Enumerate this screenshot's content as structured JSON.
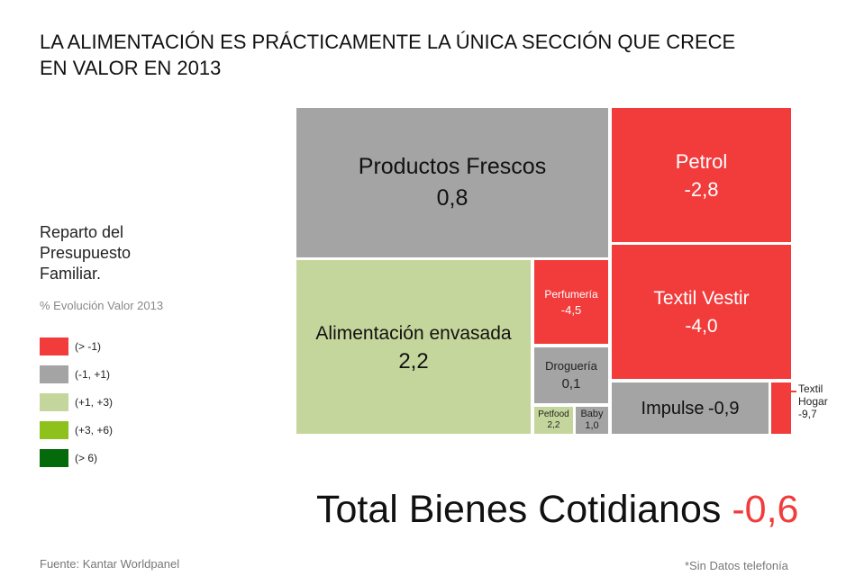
{
  "title": "LA ALIMENTACIÓN ES PRÁCTICAMENTE LA ÚNICA SECCIÓN QUE CRECE EN VALOR EN 2013",
  "legend": {
    "title": "Reparto del Presupuesto Familiar.",
    "subtitle": "% Evolución Valor 2013",
    "items": [
      {
        "label": "(> -1)",
        "color": "#f23b3b"
      },
      {
        "label": "(-1, +1)",
        "color": "#a4a4a4"
      },
      {
        "label": "(+1, +3)",
        "color": "#c5d69c"
      },
      {
        "label": "(+3, +6)",
        "color": "#8ec11b"
      },
      {
        "label": "(> 6)",
        "color": "#046a0a"
      }
    ]
  },
  "chart_data": {
    "type": "treemap",
    "items": [
      {
        "name": "Productos Frescos",
        "value": "0,8",
        "color": "#a4a4a4"
      },
      {
        "name": "Alimentación envasada",
        "value": "2,2",
        "color": "#c5d69c"
      },
      {
        "name": "Petrol",
        "value": "-2,8",
        "color": "#f23b3b"
      },
      {
        "name": "Textil Vestir",
        "value": "-4,0",
        "color": "#f23b3b"
      },
      {
        "name": "Perfumería",
        "value": "-4,5",
        "color": "#f23b3b"
      },
      {
        "name": "Droguería",
        "value": "0,1",
        "color": "#a4a4a4"
      },
      {
        "name": "Petfood",
        "value": "2,2",
        "color": "#c5d69c"
      },
      {
        "name": "Baby",
        "value": "1,0",
        "color": "#a4a4a4"
      },
      {
        "name": "Impulse",
        "value": "-0,9",
        "color": "#a4a4a4"
      },
      {
        "name": "Textil Hogar",
        "value": "-9,7",
        "color": "#f23b3b"
      }
    ],
    "total": {
      "label": "Total Bienes Cotidianos",
      "value": "-0,6"
    }
  },
  "source": "Fuente: Kantar Worldpanel",
  "footnote": "*Sin Datos telefonía"
}
